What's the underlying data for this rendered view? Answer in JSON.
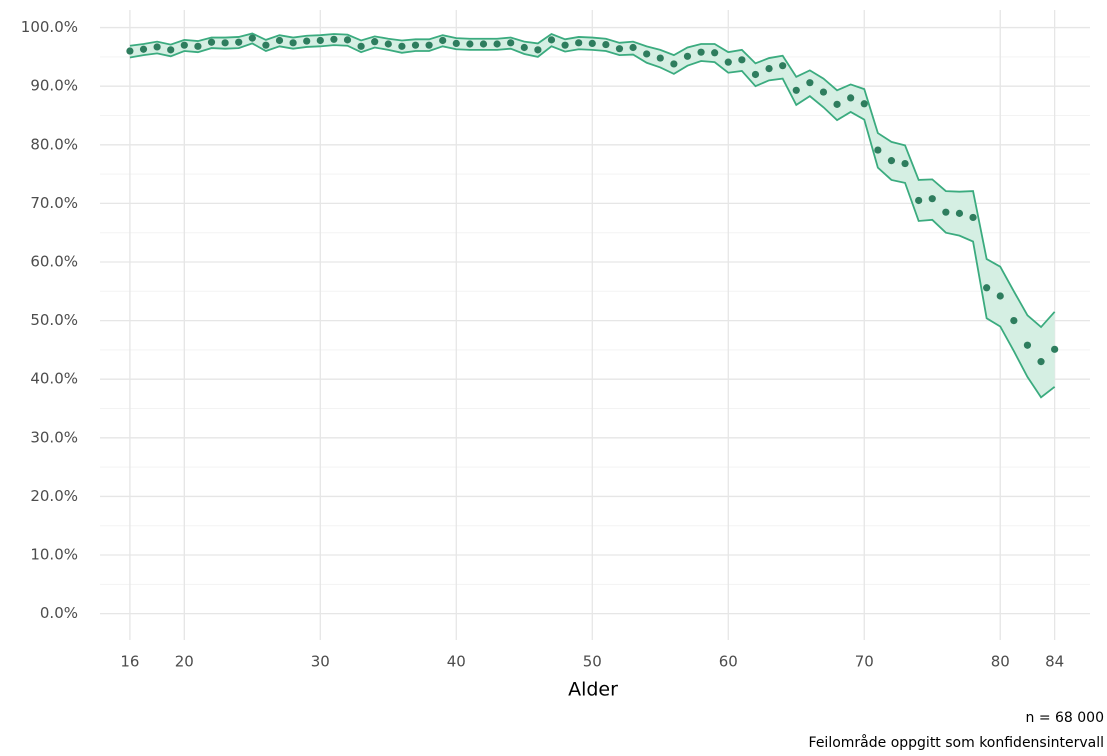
{
  "chart_data": {
    "type": "scatter",
    "xlabel": "Alder",
    "captions": [
      "n = 68 000",
      "Feilområde oppgitt som konfidensintervall"
    ],
    "x": [
      16,
      17,
      18,
      19,
      20,
      21,
      22,
      23,
      24,
      25,
      26,
      27,
      28,
      29,
      30,
      31,
      32,
      33,
      34,
      35,
      36,
      37,
      38,
      39,
      40,
      41,
      42,
      43,
      44,
      45,
      46,
      47,
      48,
      49,
      50,
      51,
      52,
      53,
      54,
      55,
      56,
      57,
      58,
      59,
      60,
      61,
      62,
      63,
      64,
      65,
      66,
      67,
      68,
      69,
      70,
      71,
      72,
      73,
      74,
      75,
      76,
      77,
      78,
      79,
      80,
      81,
      82,
      83,
      84
    ],
    "values": [
      96.0,
      96.3,
      96.7,
      96.2,
      97.0,
      96.8,
      97.5,
      97.4,
      97.5,
      98.2,
      97.0,
      97.8,
      97.4,
      97.7,
      97.8,
      98.0,
      97.9,
      96.8,
      97.6,
      97.2,
      96.8,
      97.0,
      97.0,
      97.8,
      97.3,
      97.2,
      97.2,
      97.2,
      97.4,
      96.6,
      96.2,
      97.9,
      97.0,
      97.4,
      97.3,
      97.1,
      96.4,
      96.6,
      95.5,
      94.8,
      93.8,
      95.1,
      95.8,
      95.7,
      94.1,
      94.5,
      92.0,
      93.0,
      93.5,
      89.3,
      90.6,
      89.0,
      86.9,
      88.0,
      87.0,
      79.1,
      77.3,
      76.8,
      70.5,
      70.8,
      68.5,
      68.3,
      67.6,
      55.6,
      54.2,
      50.0,
      45.8,
      43.0,
      45.1
    ],
    "lower": [
      94.9,
      95.3,
      95.6,
      95.1,
      96.0,
      95.8,
      96.5,
      96.4,
      96.5,
      97.3,
      96.0,
      96.8,
      96.4,
      96.7,
      96.8,
      97.0,
      96.9,
      95.8,
      96.6,
      96.2,
      95.7,
      96.0,
      96.0,
      96.8,
      96.3,
      96.2,
      96.2,
      96.2,
      96.4,
      95.5,
      95.0,
      96.8,
      95.9,
      96.3,
      96.2,
      96.0,
      95.3,
      95.4,
      94.0,
      93.2,
      92.1,
      93.5,
      94.3,
      94.1,
      92.3,
      92.6,
      90.0,
      91.0,
      91.3,
      86.8,
      88.3,
      86.4,
      84.2,
      85.6,
      84.3,
      76.1,
      74.0,
      73.5,
      67.0,
      67.2,
      65.0,
      64.5,
      63.5,
      50.4,
      49.0,
      44.8,
      40.4,
      36.9,
      38.7
    ],
    "upper": [
      96.9,
      97.2,
      97.6,
      97.1,
      97.9,
      97.7,
      98.3,
      98.3,
      98.4,
      99.0,
      97.9,
      98.7,
      98.3,
      98.6,
      98.7,
      98.9,
      98.8,
      97.8,
      98.5,
      98.1,
      97.8,
      98.0,
      98.0,
      98.7,
      98.2,
      98.1,
      98.1,
      98.1,
      98.3,
      97.6,
      97.3,
      98.9,
      98.0,
      98.4,
      98.3,
      98.1,
      97.4,
      97.6,
      96.8,
      96.2,
      95.3,
      96.6,
      97.2,
      97.2,
      95.8,
      96.2,
      93.9,
      94.8,
      95.2,
      91.6,
      92.7,
      91.3,
      89.3,
      90.3,
      89.5,
      82.0,
      80.5,
      79.9,
      74.0,
      74.1,
      72.1,
      72.0,
      72.1,
      60.5,
      59.2,
      55.0,
      50.9,
      48.9,
      51.5
    ],
    "color": "#2e7d5e",
    "band_color": "#3bab7f",
    "band_fill": "#d5efe3",
    "xlim": [
      13.8,
      86.6
    ],
    "ylim": [
      -4.5,
      103
    ],
    "xticks": [
      16,
      20,
      30,
      40,
      50,
      60,
      70,
      80,
      84
    ],
    "yticks": [
      {
        "value": 0,
        "label": "0.0%"
      },
      {
        "value": 10,
        "label": "10.0%"
      },
      {
        "value": 20,
        "label": "20.0%"
      },
      {
        "value": 30,
        "label": "30.0%"
      },
      {
        "value": 40,
        "label": "40.0%"
      },
      {
        "value": 50,
        "label": "50.0%"
      },
      {
        "value": 60,
        "label": "60.0%"
      },
      {
        "value": 70,
        "label": "70.0%"
      },
      {
        "value": 80,
        "label": "80.0%"
      },
      {
        "value": 90,
        "label": "90.0%"
      },
      {
        "value": 100,
        "label": "100.0%"
      }
    ],
    "grid": true
  }
}
